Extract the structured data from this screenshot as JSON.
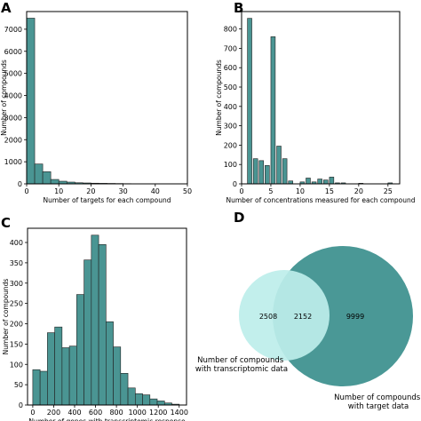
{
  "panels": {
    "A": {
      "label": "A"
    },
    "B": {
      "label": "B"
    },
    "C": {
      "label": "C"
    },
    "D": {
      "label": "D"
    }
  },
  "chart_data": [
    {
      "panel": "A",
      "type": "bar",
      "xlabel": "Number of targets for each compound",
      "ylabel": "Number of compounds",
      "xlim": [
        0,
        50
      ],
      "ylim": [
        0,
        7800
      ],
      "xticks": [
        0,
        10,
        20,
        30,
        40,
        50
      ],
      "yticks": [
        0,
        1000,
        2000,
        3000,
        4000,
        5000,
        6000,
        7000
      ],
      "bin_width": 2.5,
      "bin_starts": [
        0,
        2.5,
        5,
        7.5,
        10,
        12.5,
        15,
        17.5,
        20,
        22.5,
        25,
        27.5,
        30,
        32.5
      ],
      "values": [
        7500,
        900,
        550,
        200,
        120,
        80,
        50,
        40,
        30,
        25,
        20,
        15,
        10,
        8
      ]
    },
    {
      "panel": "B",
      "type": "bar",
      "xlabel": "Number of concentrations measured for each compound",
      "ylabel": "Number of compounds",
      "xlim": [
        0,
        27
      ],
      "ylim": [
        0,
        890
      ],
      "xticks": [
        0,
        5,
        10,
        15,
        20,
        25
      ],
      "yticks": [
        0,
        100,
        200,
        300,
        400,
        500,
        600,
        700,
        800
      ],
      "bin_width": 0.75,
      "bin_starts": [
        1,
        2,
        3,
        4,
        5,
        6,
        7,
        8,
        10,
        11,
        12,
        13,
        14,
        15,
        16,
        17,
        20,
        25
      ],
      "values": [
        855,
        130,
        120,
        95,
        760,
        195,
        130,
        15,
        10,
        30,
        10,
        25,
        20,
        35,
        5,
        5,
        3,
        5
      ]
    },
    {
      "panel": "C",
      "type": "bar",
      "xlabel": "Number of genes with transcriptomic response",
      "ylabel": "Number of compounds",
      "xlim": [
        -50,
        1470
      ],
      "ylim": [
        0,
        435
      ],
      "xticks": [
        0,
        200,
        400,
        600,
        800,
        1000,
        1200,
        1400
      ],
      "yticks": [
        0,
        50,
        100,
        150,
        200,
        250,
        300,
        350,
        400
      ],
      "bin_width": 70,
      "bin_starts": [
        0,
        70,
        140,
        210,
        280,
        350,
        420,
        490,
        560,
        630,
        700,
        770,
        840,
        910,
        980,
        1050,
        1120,
        1190,
        1260,
        1330
      ],
      "values": [
        87,
        83,
        178,
        192,
        141,
        145,
        272,
        357,
        418,
        395,
        205,
        143,
        78,
        42,
        28,
        25,
        15,
        10,
        5,
        2
      ]
    },
    {
      "panel": "D",
      "type": "venn",
      "sets": [
        {
          "label": "Number of compounds with transcriptomic data",
          "only": 2508,
          "color": "#bdeeea"
        },
        {
          "label": "Number of compounds with target data",
          "only": 9999,
          "color": "#4a9896"
        }
      ],
      "intersection": 2152
    }
  ]
}
